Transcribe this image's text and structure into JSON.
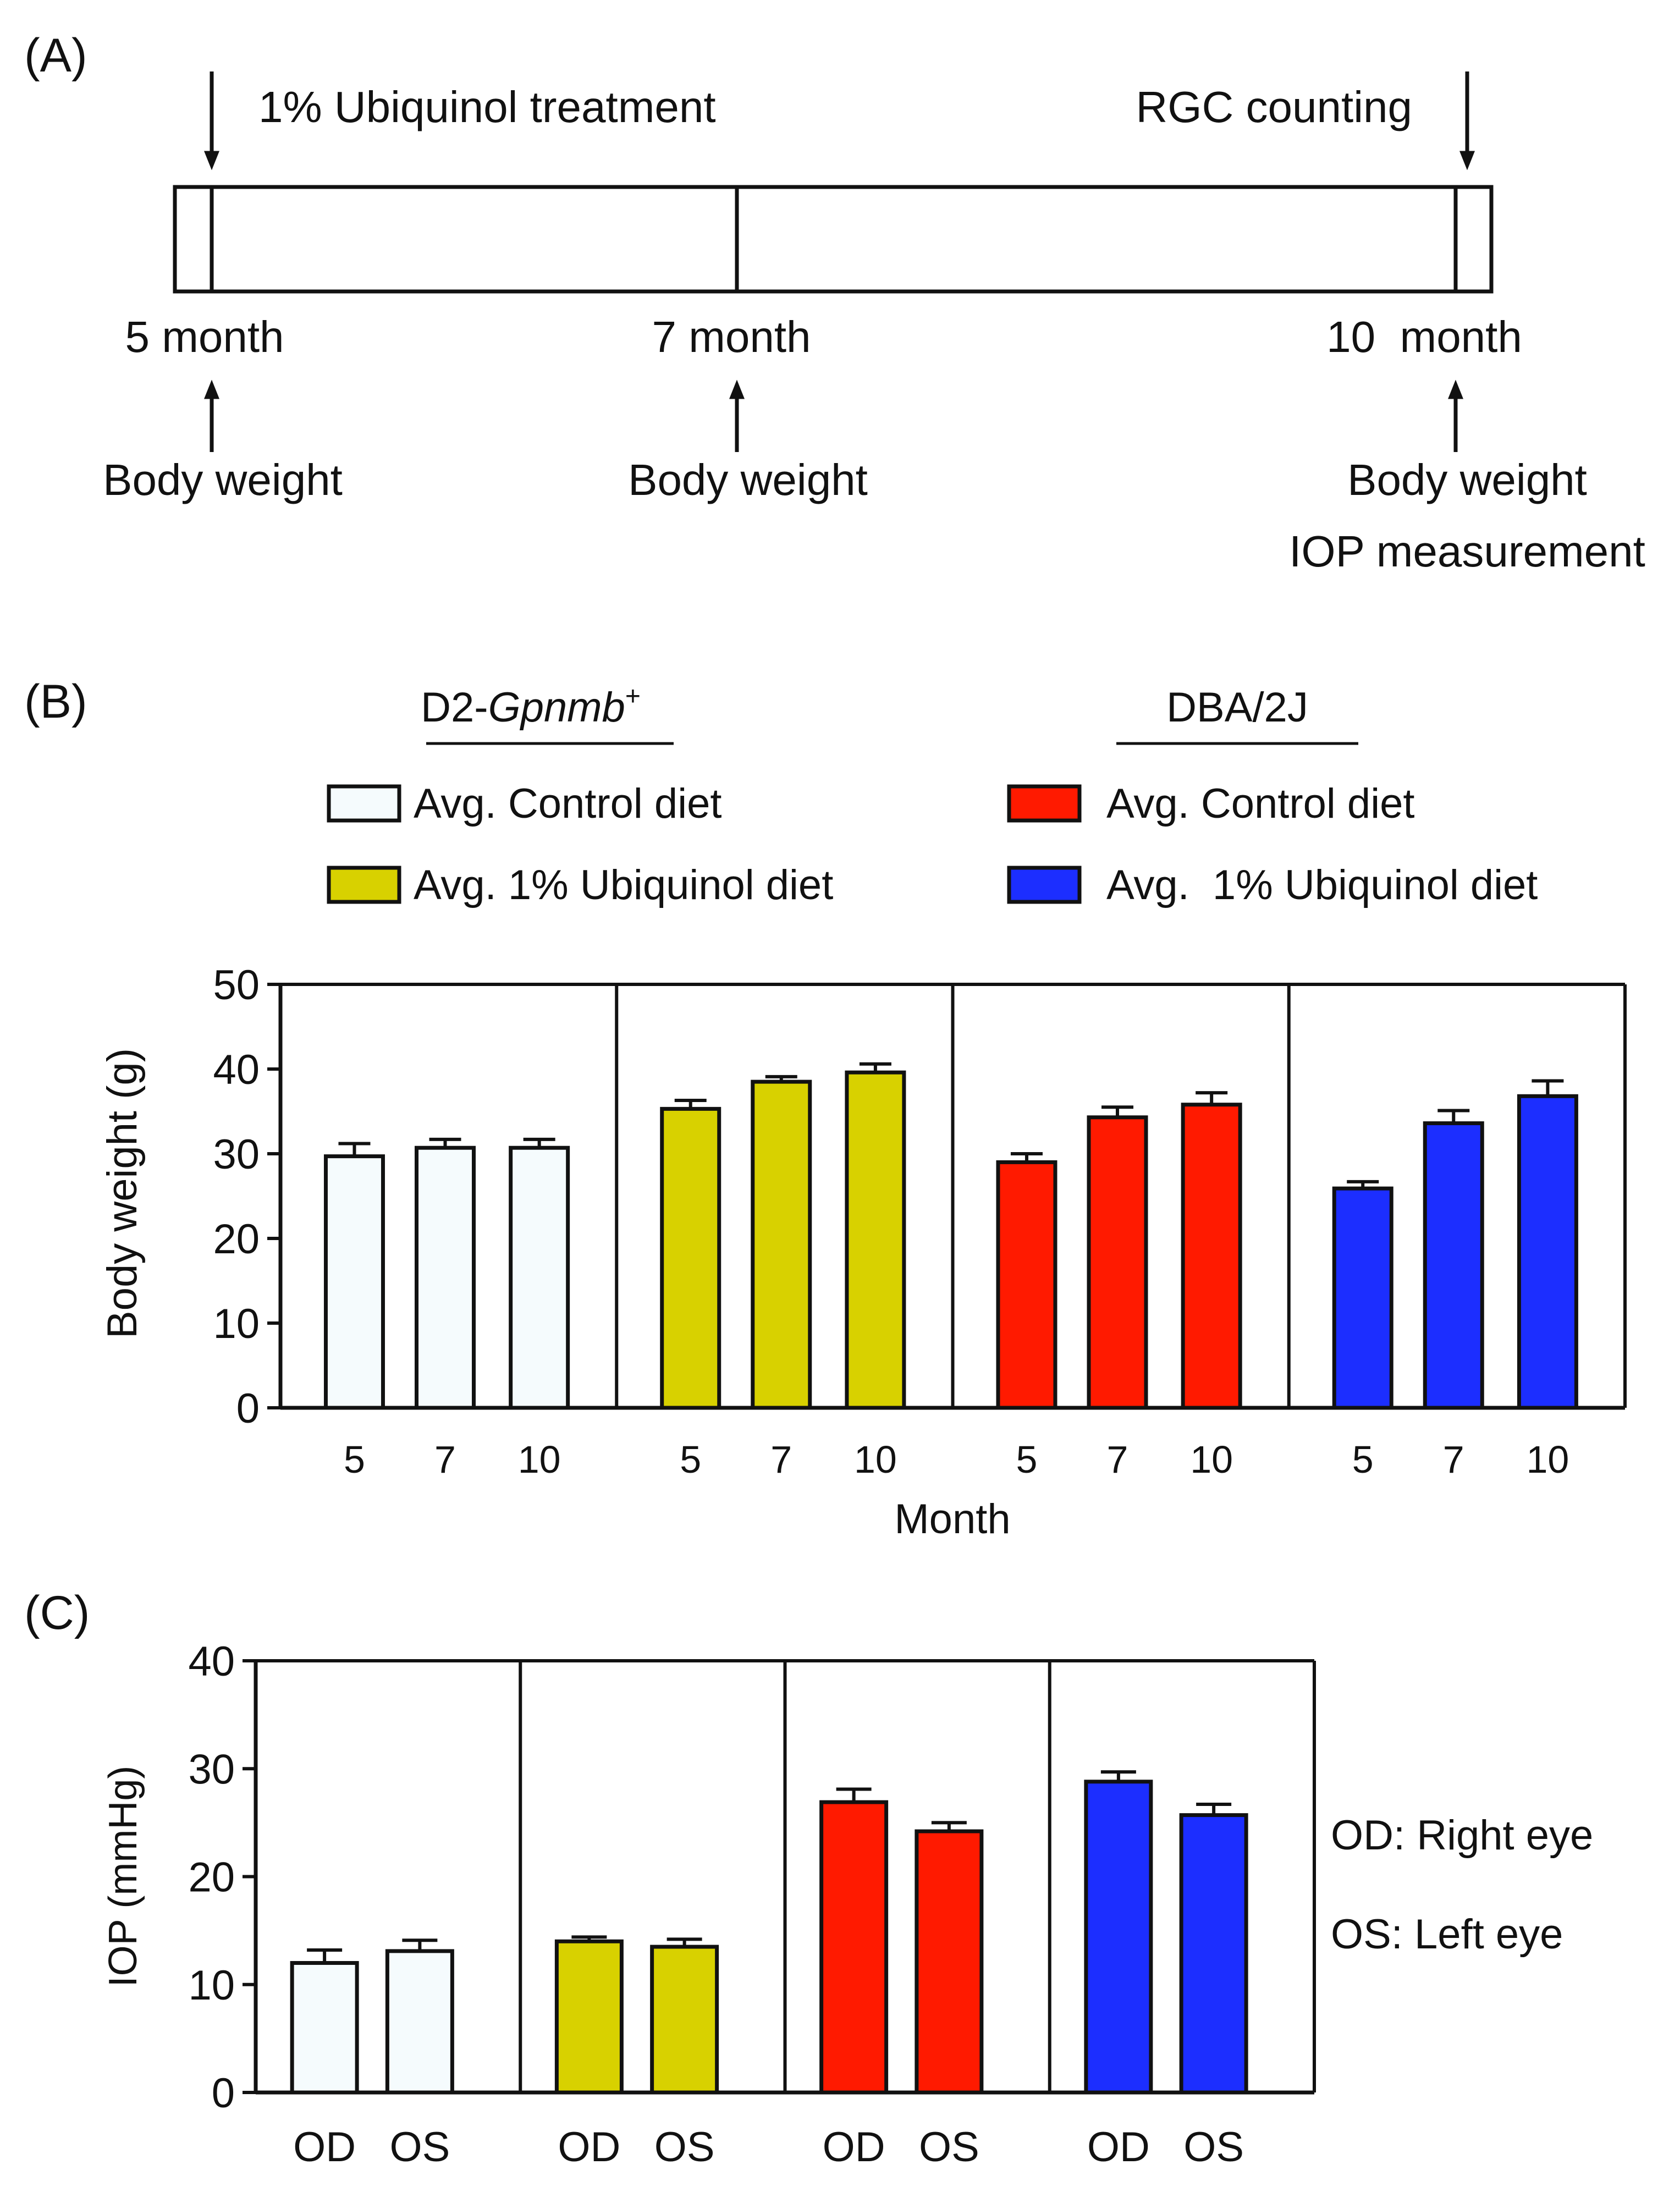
{
  "colors": {
    "control_d2": "#f5fbfd",
    "ubiquinol_d2": "#d8d100",
    "control_dba": "#ff1a00",
    "ubiquinol_dba": "#1c2eff",
    "ink": "#111111"
  },
  "panel_a": {
    "label": "(A)",
    "treatment_label": "1% Ubiquinol treatment",
    "rgc_label": "RGC counting",
    "timepoints": [
      {
        "label": "5 month",
        "events": [
          "Body weight"
        ]
      },
      {
        "label": "7 month",
        "events": [
          "Body weight"
        ]
      },
      {
        "label": "10  month",
        "events": [
          "Body weight",
          "IOP measurement"
        ]
      }
    ]
  },
  "panel_b": {
    "label": "(B)",
    "legend": {
      "groups": [
        {
          "title_prefix": "D2-",
          "title_italic": "Gpnmb",
          "title_sup": "+",
          "entries": [
            {
              "label": "Avg. Control diet",
              "color_key": "control_d2"
            },
            {
              "label": "Avg. 1% Ubiquinol diet",
              "color_key": "ubiquinol_d2"
            }
          ]
        },
        {
          "title": "DBA/2J",
          "entries": [
            {
              "label": "Avg. Control diet",
              "color_key": "control_dba"
            },
            {
              "label": "Avg.  1% Ubiquinol diet",
              "color_key": "ubiquinol_dba"
            }
          ]
        }
      ]
    }
  },
  "panel_c": {
    "label": "(C)",
    "notes": [
      "OD: Right eye",
      "OS: Left eye"
    ]
  },
  "chart_data": [
    {
      "type": "bar",
      "id": "body_weight",
      "ylabel": "Body weight (g)",
      "xlabel": "Month",
      "ylim": [
        0,
        50
      ],
      "yticks": [
        0,
        10,
        20,
        30,
        40,
        50
      ],
      "categories": [
        "5",
        "7",
        "10"
      ],
      "series": [
        {
          "name": "D2-Gpnmb+ Avg. Control diet",
          "color_key": "control_d2",
          "values": [
            29.7,
            30.7,
            30.7
          ],
          "errors": [
            1.5,
            1.0,
            1.0
          ]
        },
        {
          "name": "D2-Gpnmb+ Avg. 1% Ubiquinol diet",
          "color_key": "ubiquinol_d2",
          "values": [
            35.3,
            38.5,
            39.6
          ],
          "errors": [
            1.0,
            0.6,
            1.0
          ]
        },
        {
          "name": "DBA/2J Avg. Control diet",
          "color_key": "control_dba",
          "values": [
            29.0,
            34.3,
            35.8
          ],
          "errors": [
            1.0,
            1.2,
            1.4
          ]
        },
        {
          "name": "DBA/2J Avg. 1% Ubiquinol diet",
          "color_key": "ubiquinol_dba",
          "values": [
            25.9,
            33.6,
            36.8
          ],
          "errors": [
            0.8,
            1.5,
            1.8
          ]
        }
      ]
    },
    {
      "type": "bar",
      "id": "iop",
      "ylabel": "IOP (mmHg)",
      "xlabel": "",
      "ylim": [
        0,
        40
      ],
      "yticks": [
        0,
        10,
        20,
        30,
        40
      ],
      "categories": [
        "OD",
        "OS"
      ],
      "series": [
        {
          "name": "D2-Gpnmb+ Avg. Control diet",
          "color_key": "control_d2",
          "values": [
            12.0,
            13.1
          ],
          "errors": [
            1.2,
            1.0
          ]
        },
        {
          "name": "D2-Gpnmb+ Avg. 1% Ubiquinol diet",
          "color_key": "ubiquinol_d2",
          "values": [
            14.0,
            13.5
          ],
          "errors": [
            0.4,
            0.7
          ]
        },
        {
          "name": "DBA/2J Avg. Control diet",
          "color_key": "control_dba",
          "values": [
            26.9,
            24.2
          ],
          "errors": [
            1.2,
            0.8
          ]
        },
        {
          "name": "DBA/2J Avg. 1% Ubiquinol diet",
          "color_key": "ubiquinol_dba",
          "values": [
            28.8,
            25.7
          ],
          "errors": [
            0.9,
            1.0
          ]
        }
      ]
    }
  ]
}
